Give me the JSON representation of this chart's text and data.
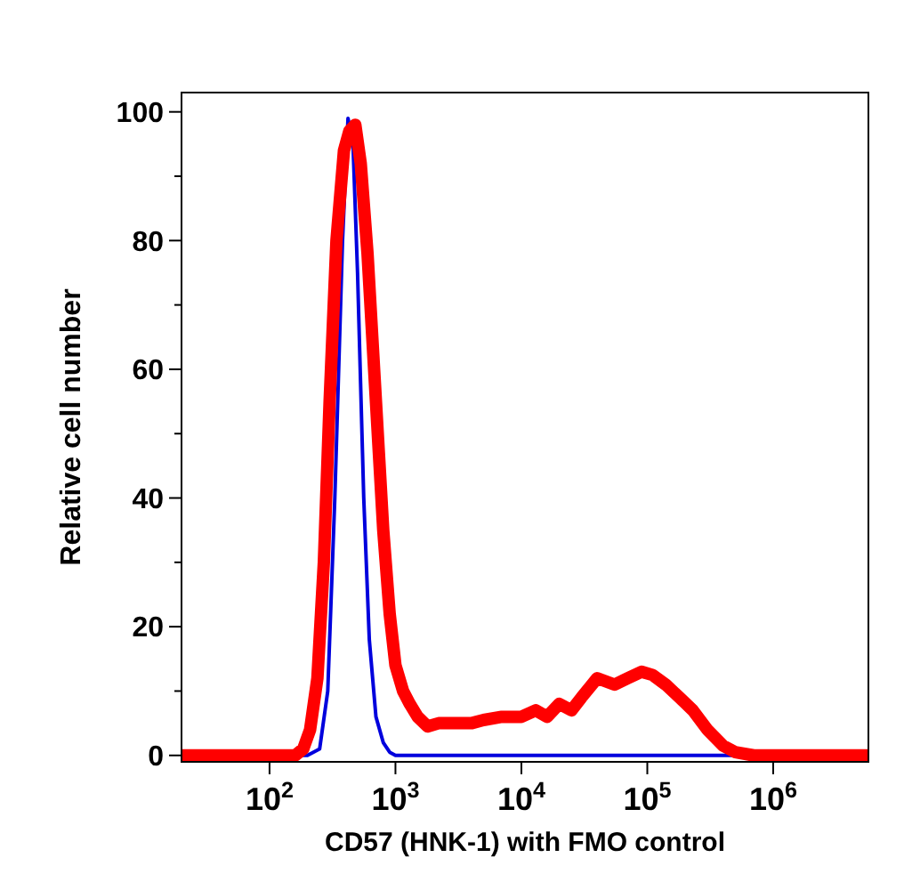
{
  "chart_data": {
    "type": "line",
    "xlabel": "CD57 (HNK-1) with FMO control",
    "ylabel": "Relative cell number",
    "log": "x",
    "xlim": [
      20,
      5700000
    ],
    "ylim": [
      -1,
      103
    ],
    "xticks": [
      {
        "value": 100,
        "label": "10$^{2}$"
      },
      {
        "value": 1000,
        "label": "10$^{3}$"
      },
      {
        "value": 10000,
        "label": "10$^{4}$"
      },
      {
        "value": 100000,
        "label": "10$^{5}$"
      },
      {
        "value": 1000000,
        "label": "10$^{6}$"
      }
    ],
    "yticks": [
      0,
      {
        "value": 10,
        "label": null
      },
      20,
      {
        "value": 30,
        "label": null
      },
      40,
      {
        "value": 50,
        "label": null
      },
      60,
      {
        "value": 70,
        "label": null
      },
      80,
      {
        "value": 90,
        "label": null
      },
      100
    ],
    "grid": false,
    "marker": "none",
    "line_style": "solid",
    "series": [
      {
        "color": "#0000dd",
        "x": [
          20,
          200,
          250,
          290,
          330,
          380,
          420,
          460,
          500,
          560,
          620,
          700,
          800,
          900,
          1000,
          5700000
        ],
        "values": [
          0,
          0,
          1,
          10,
          40,
          80,
          99,
          95,
          75,
          40,
          18,
          6,
          2,
          0.5,
          0,
          0
        ]
      },
      {
        "color": "#ff0000",
        "x": [
          20,
          100,
          160,
          185,
          210,
          240,
          270,
          300,
          340,
          390,
          430,
          480,
          530,
          600,
          700,
          800,
          900,
          1000,
          1150,
          1300,
          1500,
          1800,
          2200,
          3000,
          4000,
          5000,
          7000,
          10000,
          13000,
          16000,
          20000,
          25000,
          30000,
          40000,
          55000,
          70000,
          90000,
          110000,
          140000,
          180000,
          230000,
          300000,
          400000,
          500000,
          700000,
          5700000
        ],
        "values": [
          0,
          0,
          0,
          1,
          4,
          12,
          30,
          55,
          80,
          94,
          97,
          98,
          92,
          78,
          55,
          35,
          22,
          14,
          10,
          8,
          6,
          4.5,
          5,
          5,
          5,
          5.5,
          6,
          6,
          7,
          6,
          8,
          7,
          9,
          12,
          11,
          12,
          13,
          12.5,
          11,
          9,
          7,
          4,
          1.5,
          0.5,
          0,
          0
        ]
      }
    ]
  }
}
